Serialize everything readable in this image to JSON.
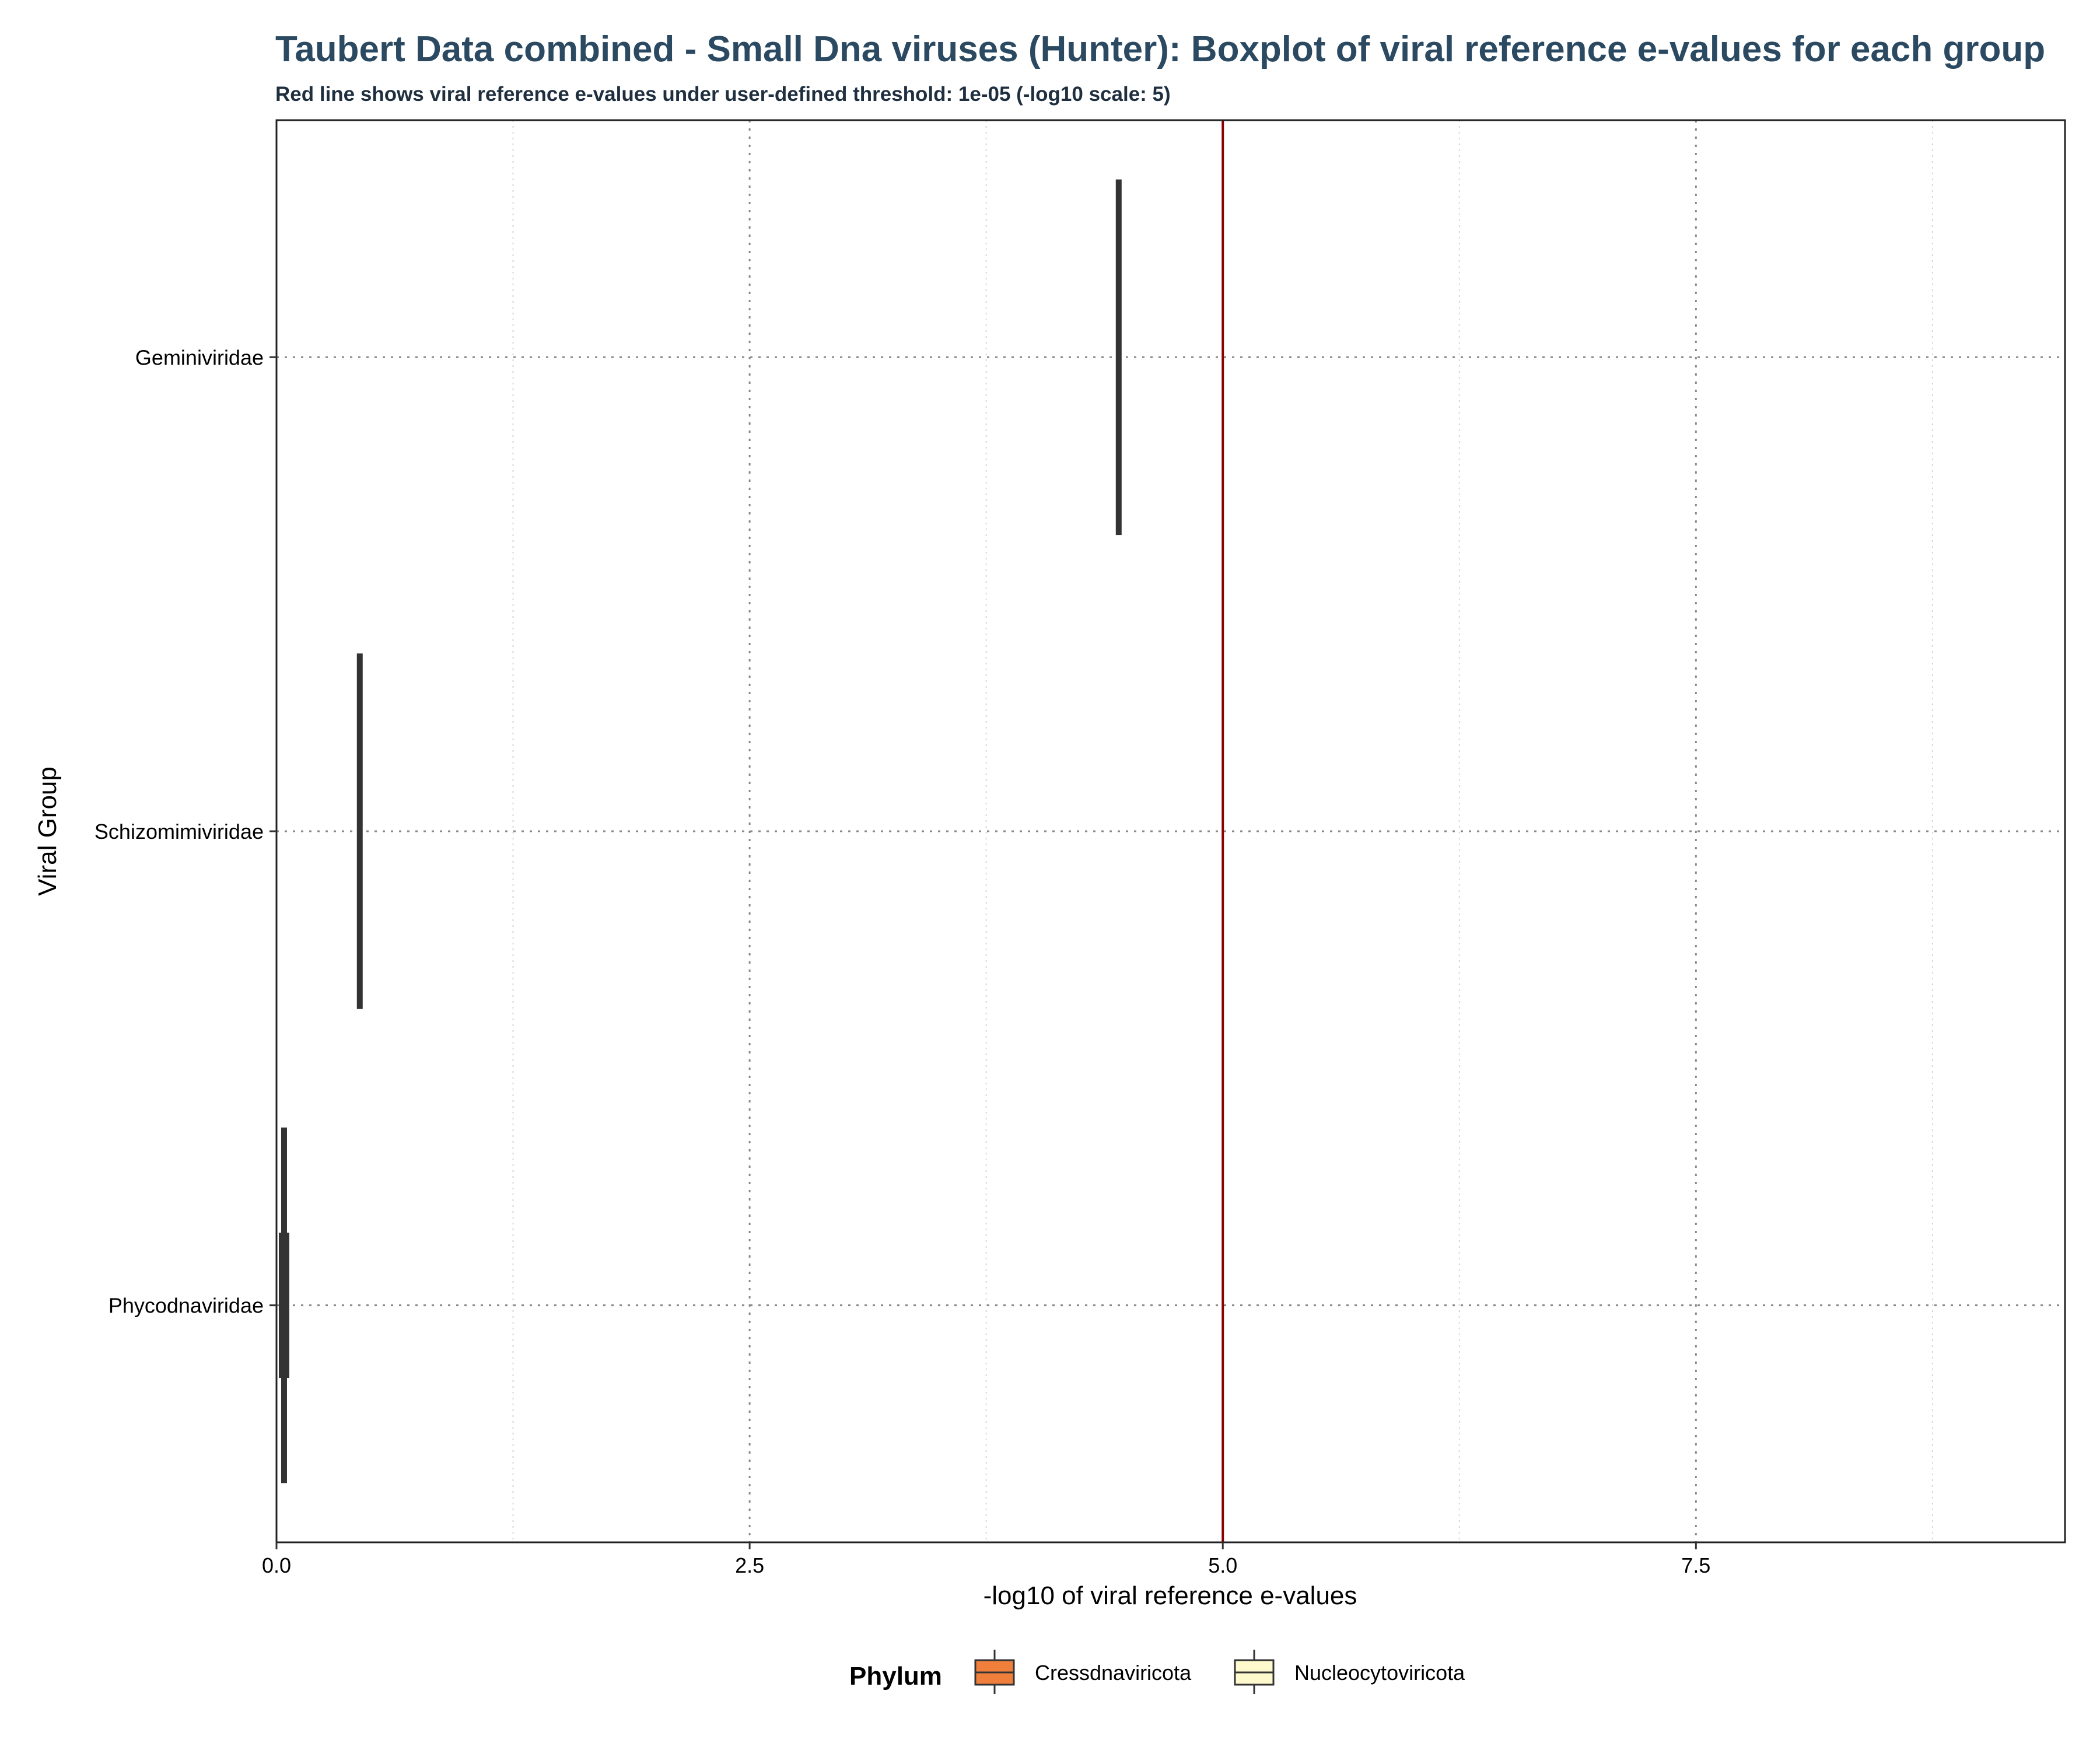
{
  "chart_data": {
    "type": "boxplot",
    "orientation": "horizontal",
    "title": "Taubert Data combined - Small Dna viruses (Hunter): Boxplot of viral reference e-values for each group",
    "subtitle": "Red line shows viral reference e-values under user-defined threshold: 1e-05 (-log10 scale: 5)",
    "xlabel": "-log10 of viral reference e-values",
    "ylabel": "Viral Group",
    "xlim": [
      0,
      9.45
    ],
    "x_ticks": [
      0,
      2.5,
      5,
      7.5
    ],
    "x_tick_labels": [
      "0.0",
      "2.5",
      "5.0",
      "7.5"
    ],
    "categories": [
      "Geminiviridae",
      "Schizomimiviridae",
      "Phycodnaviridae"
    ],
    "threshold": {
      "value": 5,
      "color": "#8b0000"
    },
    "boxes": [
      {
        "category": "Geminiviridae",
        "phylum": "Cressdnaviricota",
        "min": 4.45,
        "q1": 4.45,
        "median": 4.45,
        "q3": 4.45,
        "max": 4.45
      },
      {
        "category": "Schizomimiviridae",
        "phylum": "Nucleocytoviricota",
        "min": 0.44,
        "q1": 0.44,
        "median": 0.44,
        "q3": 0.44,
        "max": 0.44
      },
      {
        "category": "Phycodnaviridae",
        "phylum": "Nucleocytoviricota",
        "min": 0.02,
        "q1": 0.02,
        "median": 0.04,
        "q3": 0.06,
        "max": 0.06
      }
    ],
    "legend": {
      "title": "Phylum",
      "position": "bottom",
      "entries": [
        {
          "label": "Cressdnaviricota",
          "color": "#f07f3c"
        },
        {
          "label": "Nucleocytoviricota",
          "color": "#fffacd"
        }
      ]
    },
    "grid": {
      "major": "dotted",
      "minor": "dotted"
    }
  }
}
